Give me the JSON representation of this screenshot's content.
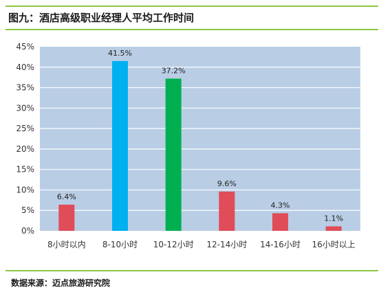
{
  "figure_title": "图九：酒店高级职业经理人平均工作时间",
  "source": "数据来源：迈点旅游研究院",
  "colors": {
    "plot_bg": "#b9cde5",
    "grid": "#ffffff",
    "bar_red": "#e04c58",
    "bar_blue": "#00b0f0",
    "bar_green": "#00b050",
    "accent_rule": "#8cc63e"
  },
  "chart_data": {
    "type": "bar",
    "title": "",
    "xlabel": "",
    "ylabel": "",
    "categories": [
      "8小时以内",
      "8-10小时",
      "10-12小时",
      "12-14小时",
      "14-16小时",
      "16小时以上"
    ],
    "values": [
      6.4,
      41.5,
      37.2,
      9.6,
      4.3,
      1.1
    ],
    "value_labels": [
      "6.4%",
      "41.5%",
      "37.2%",
      "9.6%",
      "4.3%",
      "1.1%"
    ],
    "bar_colors": [
      "#e04c58",
      "#00b0f0",
      "#00b050",
      "#e04c58",
      "#e04c58",
      "#e04c58"
    ],
    "ylim": [
      0,
      45
    ],
    "yticks": [
      0,
      5,
      10,
      15,
      20,
      25,
      30,
      35,
      40,
      45
    ],
    "ytick_labels": [
      "0%",
      "5%",
      "10%",
      "15%",
      "20%",
      "25%",
      "30%",
      "35%",
      "40%",
      "45%"
    ],
    "grid": true,
    "legend": "none"
  }
}
